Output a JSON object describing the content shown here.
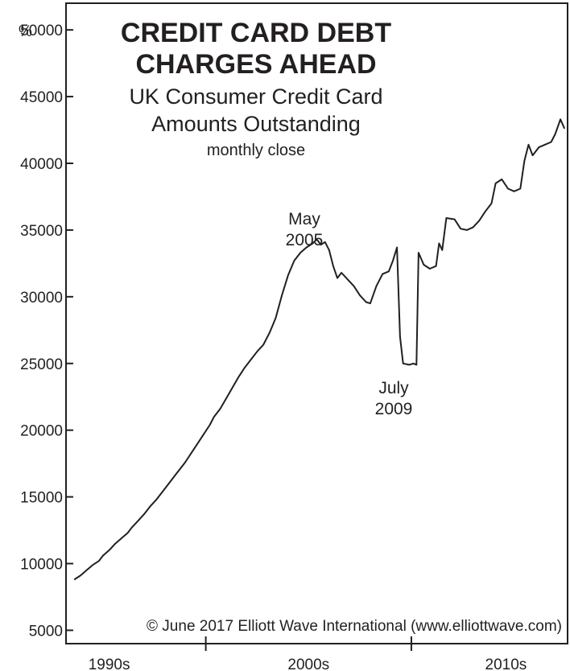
{
  "chart_data": {
    "type": "line",
    "title_line1": "CREDIT CARD DEBT",
    "title_line2": "CHARGES AHEAD",
    "subtitle_line1": "UK Consumer Credit Card",
    "subtitle_line2": "Amounts Outstanding",
    "subtitle_line3": "monthly close",
    "ylabel": "%",
    "ylim": [
      4000,
      52000
    ],
    "xlim": [
      1993.2,
      2017.6
    ],
    "y_ticks": [
      5000,
      10000,
      15000,
      20000,
      25000,
      30000,
      35000,
      40000,
      45000,
      50000
    ],
    "x_tick_marks": [
      2000,
      2010
    ],
    "x_labels": [
      {
        "label": "1990s",
        "x": 1995.3
      },
      {
        "label": "2000s",
        "x": 2005.0
      },
      {
        "label": "2010s",
        "x": 2014.6
      }
    ],
    "grid": false,
    "annotations": [
      {
        "line1": "May",
        "line2": "2005",
        "x": 2005.4,
        "y": 34300
      },
      {
        "line1": "July",
        "line2": "2009",
        "x": 2009.6,
        "y": 24700
      }
    ],
    "copyright": "© June 2017 Elliott Wave International (www.elliottwave.com)",
    "series": [
      {
        "values": [
          [
            1993.6,
            8800
          ],
          [
            1993.9,
            9100
          ],
          [
            1994.2,
            9500
          ],
          [
            1994.5,
            9900
          ],
          [
            1994.8,
            10200
          ],
          [
            1995.0,
            10600
          ],
          [
            1995.3,
            11000
          ],
          [
            1995.6,
            11500
          ],
          [
            1995.9,
            11900
          ],
          [
            1996.2,
            12300
          ],
          [
            1996.4,
            12700
          ],
          [
            1996.7,
            13200
          ],
          [
            1997.0,
            13700
          ],
          [
            1997.3,
            14300
          ],
          [
            1997.6,
            14800
          ],
          [
            1997.9,
            15400
          ],
          [
            1998.2,
            16000
          ],
          [
            1998.5,
            16600
          ],
          [
            1998.8,
            17200
          ],
          [
            1999.0,
            17600
          ],
          [
            1999.3,
            18300
          ],
          [
            1999.6,
            19000
          ],
          [
            1999.9,
            19700
          ],
          [
            2000.2,
            20400
          ],
          [
            2000.4,
            21000
          ],
          [
            2000.7,
            21600
          ],
          [
            2001.0,
            22400
          ],
          [
            2001.3,
            23200
          ],
          [
            2001.6,
            24000
          ],
          [
            2001.9,
            24700
          ],
          [
            2002.2,
            25300
          ],
          [
            2002.5,
            25900
          ],
          [
            2002.8,
            26400
          ],
          [
            2003.1,
            27300
          ],
          [
            2003.4,
            28400
          ],
          [
            2003.7,
            30100
          ],
          [
            2004.0,
            31600
          ],
          [
            2004.3,
            32700
          ],
          [
            2004.6,
            33300
          ],
          [
            2004.9,
            33700
          ],
          [
            2005.2,
            34000
          ],
          [
            2005.4,
            34300
          ],
          [
            2005.6,
            33900
          ],
          [
            2005.8,
            34100
          ],
          [
            2006.0,
            33500
          ],
          [
            2006.2,
            32300
          ],
          [
            2006.4,
            31400
          ],
          [
            2006.6,
            31800
          ],
          [
            2006.9,
            31300
          ],
          [
            2007.2,
            30800
          ],
          [
            2007.5,
            30100
          ],
          [
            2007.8,
            29600
          ],
          [
            2008.0,
            29500
          ],
          [
            2008.3,
            30800
          ],
          [
            2008.6,
            31700
          ],
          [
            2008.9,
            31900
          ],
          [
            2009.1,
            32700
          ],
          [
            2009.3,
            33700
          ],
          [
            2009.45,
            27000
          ],
          [
            2009.6,
            25000
          ],
          [
            2009.9,
            24900
          ],
          [
            2010.1,
            25000
          ],
          [
            2010.25,
            24900
          ],
          [
            2010.35,
            33300
          ],
          [
            2010.6,
            32400
          ],
          [
            2010.9,
            32100
          ],
          [
            2011.2,
            32300
          ],
          [
            2011.35,
            34000
          ],
          [
            2011.5,
            33500
          ],
          [
            2011.7,
            35900
          ],
          [
            2012.1,
            35800
          ],
          [
            2012.4,
            35100
          ],
          [
            2012.7,
            35000
          ],
          [
            2013.0,
            35200
          ],
          [
            2013.3,
            35700
          ],
          [
            2013.6,
            36400
          ],
          [
            2013.9,
            37000
          ],
          [
            2014.1,
            38500
          ],
          [
            2014.4,
            38800
          ],
          [
            2014.7,
            38100
          ],
          [
            2015.0,
            37900
          ],
          [
            2015.3,
            38100
          ],
          [
            2015.5,
            40200
          ],
          [
            2015.7,
            41400
          ],
          [
            2015.9,
            40600
          ],
          [
            2016.2,
            41200
          ],
          [
            2016.5,
            41400
          ],
          [
            2016.8,
            41600
          ],
          [
            2017.0,
            42200
          ],
          [
            2017.25,
            43300
          ],
          [
            2017.45,
            42600
          ]
        ]
      }
    ]
  }
}
